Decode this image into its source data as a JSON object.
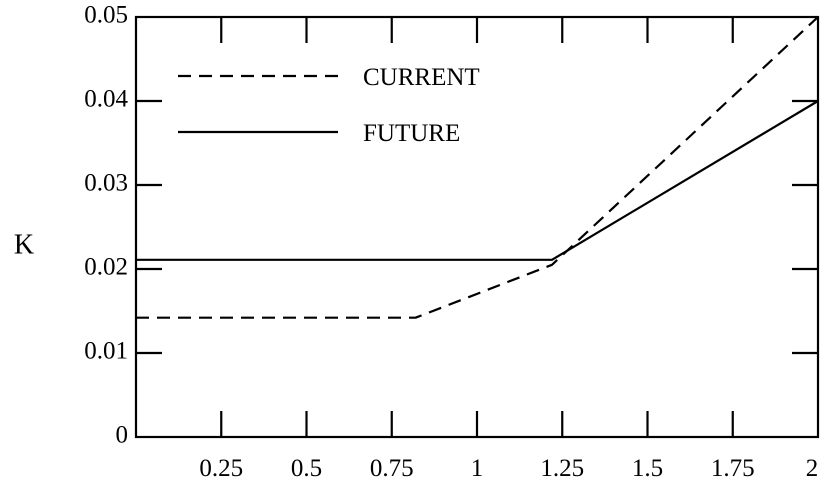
{
  "chart_data": {
    "type": "line",
    "title": "",
    "xlabel": "",
    "ylabel": "K",
    "xlim": [
      0,
      2
    ],
    "ylim": [
      0,
      0.05
    ],
    "x_ticks": [
      {
        "value": 0.25,
        "label": "0.25"
      },
      {
        "value": 0.5,
        "label": "0.5"
      },
      {
        "value": 0.75,
        "label": "0.75"
      },
      {
        "value": 1,
        "label": "1"
      },
      {
        "value": 1.25,
        "label": "1.25"
      },
      {
        "value": 1.5,
        "label": "1.5"
      },
      {
        "value": 1.75,
        "label": "1.75"
      },
      {
        "value": 2,
        "label": "2"
      }
    ],
    "y_ticks": [
      {
        "value": 0,
        "label": "0"
      },
      {
        "value": 0.01,
        "label": "0.01"
      },
      {
        "value": 0.02,
        "label": "0.02"
      },
      {
        "value": 0.03,
        "label": "0.03"
      },
      {
        "value": 0.04,
        "label": "0.04"
      },
      {
        "value": 0.05,
        "label": "0.05"
      }
    ],
    "grid": false,
    "legend_position": "top-left",
    "series": [
      {
        "name": "CURRENT",
        "style": "dashed",
        "color": "#000000",
        "points": [
          [
            0,
            0.0142
          ],
          [
            0.82,
            0.0142
          ],
          [
            1.22,
            0.0205
          ],
          [
            2,
            0.05
          ]
        ]
      },
      {
        "name": "FUTURE",
        "style": "solid",
        "color": "#000000",
        "points": [
          [
            0,
            0.0211
          ],
          [
            1.22,
            0.0211
          ],
          [
            2,
            0.04
          ]
        ]
      }
    ]
  }
}
